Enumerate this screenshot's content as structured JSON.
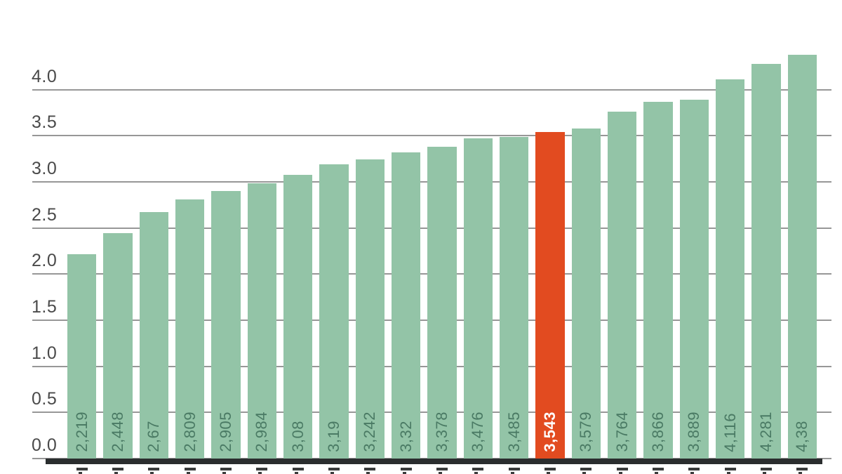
{
  "chart_data": {
    "type": "bar",
    "title": "",
    "xlabel": "",
    "ylabel": "",
    "categories_visible": false,
    "values_display": [
      "2,219",
      "2,448",
      "2,67",
      "2,809",
      "2,905",
      "2,984",
      "3,08",
      "3,19",
      "3,242",
      "3,32",
      "3,378",
      "3,476",
      "3,485",
      "3,543",
      "3,579",
      "3,764",
      "3,866",
      "3,889",
      "4,116",
      "4,281",
      "4,38"
    ],
    "values": [
      2.219,
      2.448,
      2.67,
      2.809,
      2.905,
      2.984,
      3.08,
      3.19,
      3.242,
      3.32,
      3.378,
      3.476,
      3.485,
      3.543,
      3.579,
      3.764,
      3.866,
      3.889,
      4.116,
      4.281,
      4.38
    ],
    "highlight_index": 13,
    "highlight_value_display": "3,543",
    "y_ticks": [
      "0.0",
      "0.5",
      "1.0",
      "1.5",
      "2.0",
      "2.5",
      "3.0",
      "3.5",
      "4.0"
    ],
    "ylim": [
      0,
      4.45
    ],
    "grid": "horizontal",
    "legend": "none",
    "colors": {
      "bar": "#93c4a7",
      "highlight_bar": "#e24b20",
      "bar_label": "#4a7a64",
      "highlight_bar_label": "#ffffff",
      "gridline": "#979797",
      "axis_line": "#2a2d2e",
      "tick_label": "#4a4a4a"
    }
  }
}
